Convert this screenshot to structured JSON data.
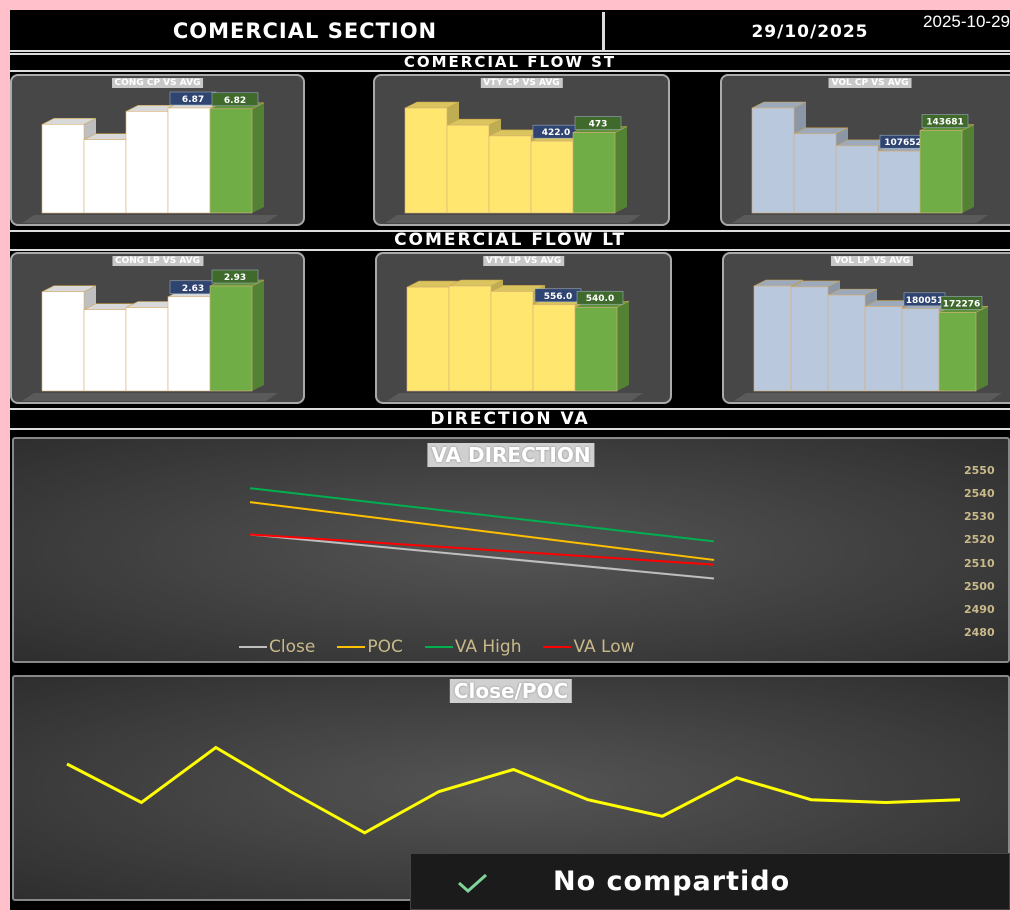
{
  "header": {
    "title": "COMERCIAL SECTION",
    "date": "29/10/2025",
    "timestamp": "2025-10-29"
  },
  "sections": {
    "st": "COMERCIAL FLOW ST",
    "lt": "COMERCIAL FLOW LT",
    "direction": "DIRECTION VA"
  },
  "colors": {
    "white_bar": "#ffffff",
    "yellow_bar": "#ffe66e",
    "blue_bar": "#b9c8dd",
    "green_bar": "#70ad47",
    "close": "#bfbfbf",
    "poc": "#ffc000",
    "va_high": "#00b050",
    "va_low": "#ff0000",
    "close_poc": "#ffff00"
  },
  "chart_data": [
    {
      "type": "bar",
      "title": "CONG CP VS AVG",
      "color": "white",
      "values": [
        5.8,
        4.8,
        6.65,
        6.87,
        6.82
      ],
      "labels": [
        null,
        null,
        null,
        "6.87",
        "6.82"
      ]
    },
    {
      "type": "bar",
      "title": "VTY CP VS AVG",
      "color": "yellow",
      "values": [
        617,
        516,
        453,
        422.0,
        473
      ],
      "labels": [
        null,
        null,
        null,
        "422.0",
        "473"
      ]
    },
    {
      "type": "bar",
      "title": "VOL CP VS AVG",
      "color": "blue",
      "values": [
        183000,
        138000,
        117000,
        107652,
        143681
      ],
      "labels": [
        null,
        null,
        null,
        "107652",
        "143681"
      ]
    },
    {
      "type": "bar",
      "title": "CONG LP VS AVG",
      "color": "white",
      "values": [
        2.77,
        2.27,
        2.33,
        2.63,
        2.93
      ],
      "labels": [
        null,
        null,
        null,
        "2.63",
        "2.93"
      ]
    },
    {
      "type": "bar",
      "title": "VTY LP VS AVG",
      "color": "yellow",
      "values": [
        670,
        677,
        642,
        556.0,
        540.0
      ],
      "labels": [
        null,
        null,
        null,
        "556.0",
        "540.0"
      ]
    },
    {
      "type": "bar",
      "title": "VOL LP VS AVG",
      "color": "blue",
      "values": [
        230000,
        228000,
        210000,
        185000,
        180051,
        172276
      ],
      "labels": [
        null,
        null,
        null,
        null,
        "180051",
        "172276"
      ]
    },
    {
      "type": "line",
      "title": "VA DIRECTION",
      "ylim": [
        2480,
        2550
      ],
      "yticks": [
        "2550",
        "2540",
        "2530",
        "2520",
        "2510",
        "2500",
        "2490",
        "2480"
      ],
      "legend": "bottom",
      "series": [
        {
          "name": "Close",
          "values": [
            2523,
            2504
          ]
        },
        {
          "name": "POC",
          "values": [
            2537,
            2512
          ]
        },
        {
          "name": "VA High",
          "values": [
            2543,
            2520
          ]
        },
        {
          "name": "VA Low",
          "values": [
            2523,
            2510
          ]
        }
      ]
    },
    {
      "type": "line",
      "title": "Close/POC",
      "values": [
        72,
        58,
        78,
        62,
        47,
        62,
        70,
        59,
        53,
        67,
        59,
        58,
        59
      ]
    }
  ],
  "toast": {
    "icon": "check-icon",
    "text": "No compartido"
  }
}
